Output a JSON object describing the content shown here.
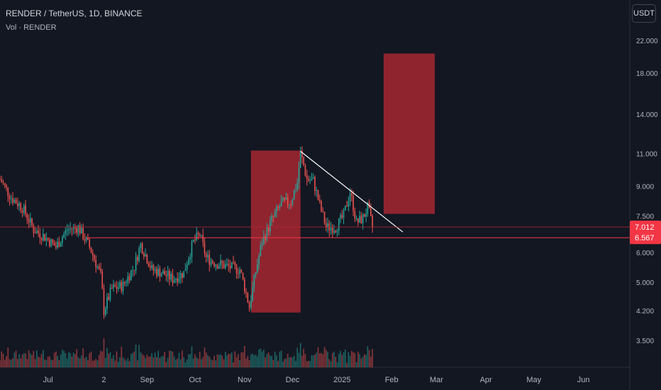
{
  "header": {
    "title": "RENDER / TetherUS, 1D, BINANCE",
    "volume_label": "Vol · RENDER"
  },
  "currency_button": "USDT",
  "price_tags": {
    "last": "7.012",
    "support": "6.567"
  },
  "colors": {
    "background": "#131722",
    "up": "#26a69a",
    "down": "#ef5350",
    "zone": "#b22833",
    "support_line": "#f23645",
    "trendline": "#ffffff",
    "text": "#b2b5be"
  },
  "chart_data": {
    "type": "candlestick",
    "symbol": "RENDER / TetherUS",
    "interval": "1D",
    "exchange": "BINANCE",
    "yscale": "log",
    "y_ticks": [
      "22.000",
      "18.000",
      "14.000",
      "11.000",
      "9.000",
      "7.500",
      "6.000",
      "5.000",
      "4.200",
      "3.500"
    ],
    "x_ticks": [
      "Jul",
      "2",
      "Sep",
      "Oct",
      "Nov",
      "Dec",
      "2025",
      "Feb",
      "Mar",
      "Apr",
      "May",
      "Jun"
    ],
    "x_range": [
      "2024-06-01",
      "2025-06-30"
    ],
    "close_series": [
      [
        "2024-06-01",
        9.4
      ],
      [
        "2024-06-08",
        8.4
      ],
      [
        "2024-06-15",
        7.9
      ],
      [
        "2024-06-22",
        6.9
      ],
      [
        "2024-06-29",
        6.6
      ],
      [
        "2024-07-06",
        6.2
      ],
      [
        "2024-07-13",
        6.9
      ],
      [
        "2024-07-20",
        7.0
      ],
      [
        "2024-07-27",
        6.2
      ],
      [
        "2024-08-03",
        5.2
      ],
      [
        "2024-08-05",
        4.2
      ],
      [
        "2024-08-10",
        4.8
      ],
      [
        "2024-08-17",
        4.9
      ],
      [
        "2024-08-24",
        5.5
      ],
      [
        "2024-08-28",
        6.3
      ],
      [
        "2024-09-04",
        5.4
      ],
      [
        "2024-09-10",
        5.3
      ],
      [
        "2024-09-17",
        5.1
      ],
      [
        "2024-09-24",
        5.3
      ],
      [
        "2024-09-30",
        6.4
      ],
      [
        "2024-10-04",
        6.7
      ],
      [
        "2024-10-08",
        5.8
      ],
      [
        "2024-10-15",
        5.6
      ],
      [
        "2024-10-22",
        5.5
      ],
      [
        "2024-10-29",
        5.4
      ],
      [
        "2024-11-04",
        4.3
      ],
      [
        "2024-11-06",
        4.8
      ],
      [
        "2024-11-12",
        6.4
      ],
      [
        "2024-11-18",
        7.3
      ],
      [
        "2024-11-24",
        8.1
      ],
      [
        "2024-11-30",
        8.2
      ],
      [
        "2024-12-04",
        9.2
      ],
      [
        "2024-12-06",
        11.0
      ],
      [
        "2024-12-10",
        9.4
      ],
      [
        "2024-12-14",
        9.3
      ],
      [
        "2024-12-18",
        8.0
      ],
      [
        "2024-12-22",
        7.0
      ],
      [
        "2024-12-28",
        7.0
      ],
      [
        "2025-01-02",
        7.5
      ],
      [
        "2025-01-06",
        8.7
      ],
      [
        "2025-01-10",
        7.2
      ],
      [
        "2025-01-14",
        7.4
      ],
      [
        "2025-01-17",
        7.9
      ],
      [
        "2025-01-20",
        7.01
      ]
    ],
    "volume": "per-candle bars at bottom, same colors as candles",
    "annotations": [
      {
        "type": "rectangle",
        "from": [
          "2024-11-05",
          4.15
        ],
        "to": [
          "2024-12-06",
          11.2
        ]
      },
      {
        "type": "rectangle",
        "from": [
          "2025-01-27",
          7.6
        ],
        "to": [
          "2025-02-28",
          20.3
        ]
      },
      {
        "type": "horizontal_line",
        "value": 6.567
      },
      {
        "type": "trendline",
        "from": [
          "2024-12-06",
          11.15
        ],
        "to": [
          "2025-02-08",
          6.8
        ]
      },
      {
        "type": "horizontal_line",
        "value": 7.012
      }
    ]
  }
}
